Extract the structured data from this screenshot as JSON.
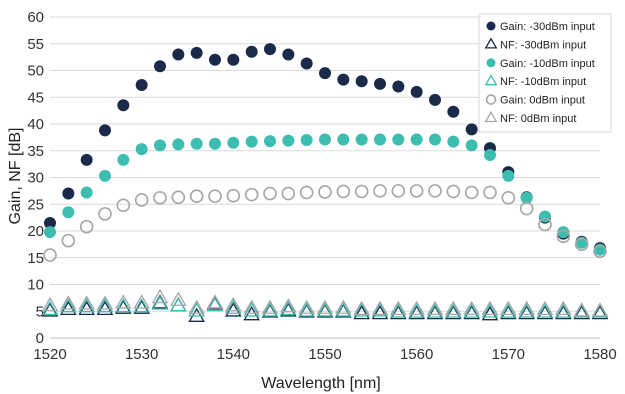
{
  "chart_data": {
    "type": "scatter",
    "xlabel": "Wavelength [nm]",
    "ylabel": "Gain, NF [dB]",
    "xlim": [
      1520,
      1580
    ],
    "ylim": [
      0,
      60
    ],
    "xticks": [
      1520,
      1530,
      1540,
      1550,
      1560,
      1570,
      1580
    ],
    "yticks": [
      0,
      5,
      10,
      15,
      20,
      25,
      30,
      35,
      40,
      45,
      50,
      55,
      60
    ],
    "grid": true,
    "legend_position": "top-right",
    "series": [
      {
        "name": "Gain: -30dBm input",
        "marker": "circle",
        "filled": true,
        "color": "#1b2a4a",
        "x": [
          1520,
          1522,
          1524,
          1526,
          1528,
          1530,
          1532,
          1534,
          1536,
          1538,
          1540,
          1542,
          1544,
          1546,
          1548,
          1550,
          1552,
          1554,
          1556,
          1558,
          1560,
          1562,
          1564,
          1566,
          1568,
          1570,
          1572,
          1574,
          1576,
          1578,
          1580
        ],
        "y": [
          21.5,
          27,
          33.3,
          38.8,
          43.5,
          47.3,
          50.8,
          53,
          53.3,
          52,
          52,
          53.5,
          54,
          53,
          51.3,
          49.5,
          48.3,
          48,
          47.5,
          47,
          46,
          44.5,
          42.3,
          39,
          35.5,
          31,
          26.3,
          22.5,
          19.5,
          18,
          16.8
        ]
      },
      {
        "name": "NF: -30dBm input",
        "marker": "triangle",
        "filled": false,
        "color": "#1b2a4a",
        "x": [
          1520,
          1522,
          1524,
          1526,
          1528,
          1530,
          1532,
          1534,
          1536,
          1538,
          1540,
          1542,
          1544,
          1546,
          1548,
          1550,
          1552,
          1554,
          1556,
          1558,
          1560,
          1562,
          1564,
          1566,
          1568,
          1570,
          1572,
          1574,
          1576,
          1578,
          1580
        ],
        "y": [
          5,
          5.3,
          5.3,
          5.3,
          5.5,
          5.5,
          6.5,
          6,
          4,
          6.3,
          5,
          4.3,
          4.8,
          5,
          4.8,
          4.8,
          4.8,
          4.5,
          4.5,
          4.5,
          4.5,
          4.5,
          4.5,
          4.5,
          4.3,
          4.5,
          4.5,
          4.5,
          4.5,
          4.5,
          4.5
        ]
      },
      {
        "name": "Gain: -10dBm input",
        "marker": "circle",
        "filled": true,
        "color": "#3dbdb0",
        "x": [
          1520,
          1522,
          1524,
          1526,
          1528,
          1530,
          1532,
          1534,
          1536,
          1538,
          1540,
          1542,
          1544,
          1546,
          1548,
          1550,
          1552,
          1554,
          1556,
          1558,
          1560,
          1562,
          1564,
          1566,
          1568,
          1570,
          1572,
          1574,
          1576,
          1578,
          1580
        ],
        "y": [
          19.8,
          23.5,
          27.2,
          30.3,
          33.3,
          35.3,
          36,
          36.2,
          36.3,
          36.3,
          36.5,
          36.7,
          36.8,
          36.9,
          37,
          37.1,
          37.1,
          37.1,
          37.1,
          37.1,
          37.1,
          37.1,
          36.7,
          36,
          34.2,
          30.3,
          26.2,
          22.7,
          19.8,
          17.8,
          16.5
        ]
      },
      {
        "name": "NF: -10dBm input",
        "marker": "triangle",
        "filled": false,
        "color": "#3dbdb0",
        "x": [
          1520,
          1522,
          1524,
          1526,
          1528,
          1530,
          1532,
          1534,
          1536,
          1538,
          1540,
          1542,
          1544,
          1546,
          1548,
          1550,
          1552,
          1554,
          1556,
          1558,
          1560,
          1562,
          1564,
          1566,
          1568,
          1570,
          1572,
          1574,
          1576,
          1578,
          1580
        ],
        "y": [
          5.3,
          5.8,
          5.8,
          5.8,
          5.8,
          5.8,
          6.3,
          6,
          5,
          6,
          5.5,
          5,
          5,
          5.3,
          5,
          5,
          5,
          5,
          5,
          4.8,
          4.8,
          4.8,
          4.8,
          4.8,
          4.8,
          4.8,
          4.8,
          4.8,
          4.8,
          4.8,
          4.8
        ]
      },
      {
        "name": "Gain: 0dBm input",
        "marker": "circle",
        "filled": false,
        "color": "#a6a6a6",
        "x": [
          1520,
          1522,
          1524,
          1526,
          1528,
          1530,
          1532,
          1534,
          1536,
          1538,
          1540,
          1542,
          1544,
          1546,
          1548,
          1550,
          1552,
          1554,
          1556,
          1558,
          1560,
          1562,
          1564,
          1566,
          1568,
          1570,
          1572,
          1574,
          1576,
          1578,
          1580
        ],
        "y": [
          15.5,
          18.2,
          20.8,
          23.2,
          24.8,
          25.8,
          26.2,
          26.3,
          26.5,
          26.5,
          26.6,
          26.8,
          27,
          27,
          27.2,
          27.3,
          27.4,
          27.4,
          27.5,
          27.5,
          27.5,
          27.5,
          27.4,
          27.2,
          27.2,
          26.2,
          24.2,
          21.2,
          19,
          17.5,
          16.2
        ]
      },
      {
        "name": "NF: 0dBm input",
        "marker": "triangle",
        "filled": false,
        "color": "#a6a6a6",
        "x": [
          1520,
          1522,
          1524,
          1526,
          1528,
          1530,
          1532,
          1534,
          1536,
          1538,
          1540,
          1542,
          1544,
          1546,
          1548,
          1550,
          1552,
          1554,
          1556,
          1558,
          1560,
          1562,
          1564,
          1566,
          1568,
          1570,
          1572,
          1574,
          1576,
          1578,
          1580
        ],
        "y": [
          6,
          6.3,
          6.3,
          6.3,
          6.5,
          6.5,
          7.5,
          7,
          5.5,
          6.5,
          6,
          5.5,
          5.5,
          5.8,
          5.5,
          5.5,
          5.5,
          5.3,
          5.3,
          5.3,
          5.3,
          5.3,
          5.3,
          5.3,
          5.3,
          5.3,
          5.3,
          5.3,
          5.3,
          5,
          5
        ]
      }
    ]
  }
}
